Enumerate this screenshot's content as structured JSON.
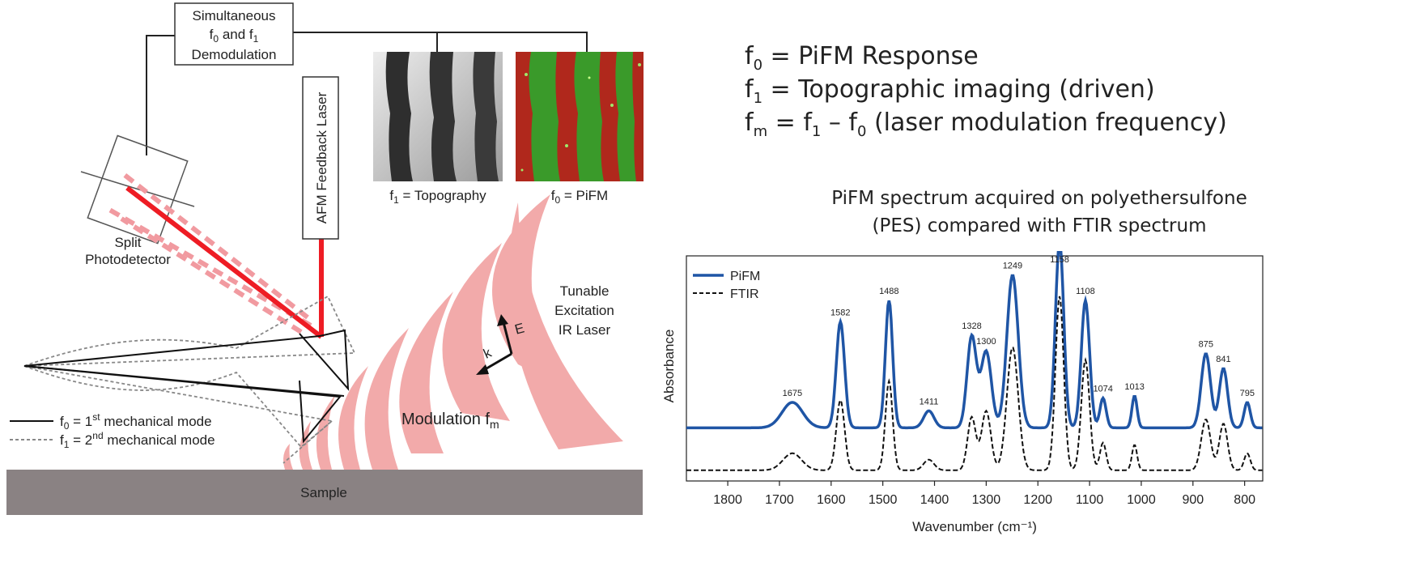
{
  "diagram": {
    "demod_box": [
      "Simultaneous",
      "f",
      "0",
      " and f",
      "1",
      "Demodulation"
    ],
    "afm_laser_label": "AFM Feedback Laser",
    "photodetector_label": [
      "Split",
      "Photodetector"
    ],
    "topography_caption": [
      "f",
      "1",
      " = Topography"
    ],
    "pifm_caption": [
      "f",
      "0",
      " = PiFM"
    ],
    "ir_laser_label": [
      "Tunable",
      "Excitation",
      "IR Laser"
    ],
    "modulation_label": [
      "Modulation f",
      "m"
    ],
    "vector_labels": {
      "k": "k",
      "e": "E"
    },
    "legend": {
      "mode1": [
        "f",
        "0",
        " = 1",
        "st",
        " mechanical mode"
      ],
      "mode2": [
        "f",
        "1",
        " = 2",
        "nd",
        " mechanical mode"
      ]
    },
    "sample_label": "Sample",
    "colors": {
      "laser": "#ee1c24",
      "ir_wave": "#f2aaaa",
      "sample": "#8a8283",
      "pifm_red": "#b0281c",
      "pifm_green": "#3a9a2a"
    }
  },
  "equations": [
    {
      "pre": "f",
      "sub": "0",
      "post": " = PiFM Response"
    },
    {
      "pre": "f",
      "sub": "1",
      "post": " = Topographic imaging (driven)"
    },
    {
      "pre": "f",
      "sub": "m",
      "post": " = f",
      "sub2": "1",
      "post2": " – f",
      "sub3": "0",
      "post3": " (laser modulation frequency)"
    }
  ],
  "spectrum_caption": [
    "PiFM spectrum acquired on polyethersulfone",
    "(PES) compared with FTIR spectrum"
  ],
  "chart_data": {
    "type": "line",
    "xlabel": "Wavenumber (cm⁻¹)",
    "ylabel": "Absorbance",
    "xlim": [
      1880,
      765
    ],
    "x_reversed": true,
    "xticks": [
      1800,
      1700,
      1600,
      1500,
      1400,
      1300,
      1200,
      1100,
      1000,
      900,
      800
    ],
    "ylim": [
      0,
      1
    ],
    "legend_position": "top-left",
    "series": [
      {
        "name": "PiFM",
        "color": "#1f55a5",
        "style": "solid",
        "baseline": 0.22,
        "peaks": [
          [
            1675,
            0.12,
            20
          ],
          [
            1582,
            0.5,
            8
          ],
          [
            1488,
            0.6,
            7
          ],
          [
            1411,
            0.08,
            10
          ],
          [
            1328,
            0.43,
            9
          ],
          [
            1300,
            0.36,
            10
          ],
          [
            1249,
            0.72,
            11
          ],
          [
            1158,
            0.88,
            8
          ],
          [
            1108,
            0.6,
            8
          ],
          [
            1074,
            0.14,
            6
          ],
          [
            1013,
            0.15,
            5
          ],
          [
            875,
            0.35,
            9
          ],
          [
            841,
            0.28,
            8
          ],
          [
            795,
            0.12,
            6
          ]
        ]
      },
      {
        "name": "FTIR",
        "color": "#111111",
        "style": "dashed",
        "baseline": 0.02,
        "peaks": [
          [
            1675,
            0.08,
            18
          ],
          [
            1582,
            0.33,
            8
          ],
          [
            1488,
            0.42,
            7
          ],
          [
            1411,
            0.05,
            10
          ],
          [
            1328,
            0.25,
            8
          ],
          [
            1300,
            0.28,
            9
          ],
          [
            1249,
            0.58,
            11
          ],
          [
            1158,
            0.82,
            8
          ],
          [
            1108,
            0.52,
            8
          ],
          [
            1074,
            0.13,
            6
          ],
          [
            1013,
            0.12,
            5
          ],
          [
            875,
            0.24,
            9
          ],
          [
            841,
            0.22,
            8
          ],
          [
            795,
            0.08,
            6
          ]
        ]
      }
    ],
    "peak_labels": [
      {
        "x": 1675,
        "text": "1675"
      },
      {
        "x": 1582,
        "text": "1582"
      },
      {
        "x": 1488,
        "text": "1488"
      },
      {
        "x": 1411,
        "text": "1411"
      },
      {
        "x": 1328,
        "text": "1328"
      },
      {
        "x": 1300,
        "text": "1300"
      },
      {
        "x": 1249,
        "text": "1249"
      },
      {
        "x": 1158,
        "text": "1158"
      },
      {
        "x": 1108,
        "text": "1108"
      },
      {
        "x": 1074,
        "text": "1074"
      },
      {
        "x": 1013,
        "text": "1013"
      },
      {
        "x": 875,
        "text": "875"
      },
      {
        "x": 841,
        "text": "841"
      },
      {
        "x": 795,
        "text": "795"
      }
    ]
  }
}
